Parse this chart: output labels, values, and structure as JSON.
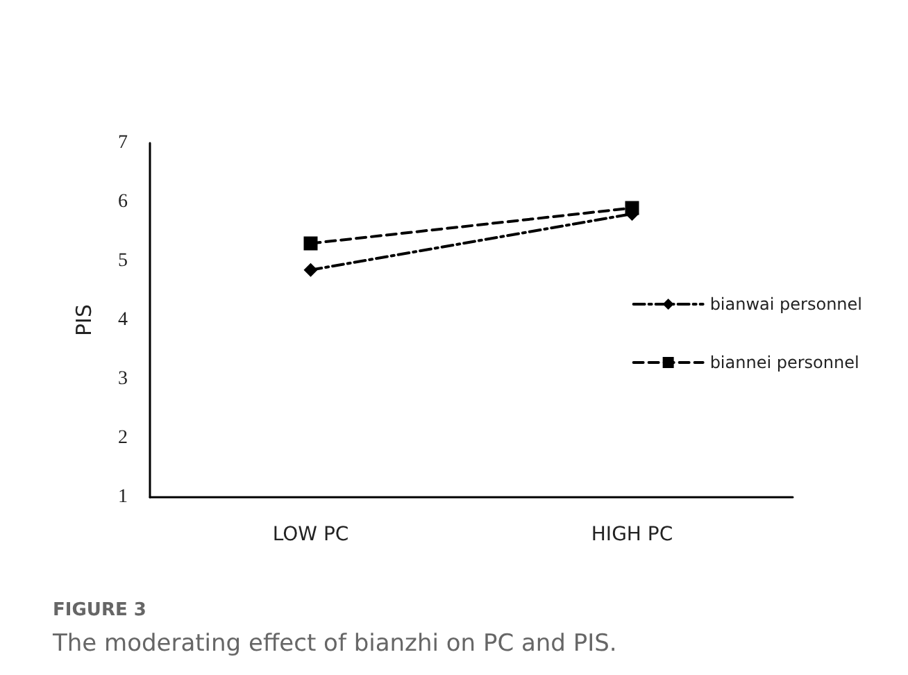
{
  "chart_data": {
    "type": "line",
    "ylabel": "PIS",
    "categories": [
      "LOW PC",
      "HIGH PC"
    ],
    "series": [
      {
        "name": "bianwai personnel",
        "color": "#000000",
        "values": [
          4.85,
          5.8
        ],
        "marker": "diamond",
        "line_style": "dotted"
      },
      {
        "name": "biannei personnel",
        "color": "#000000",
        "values": [
          5.3,
          5.9
        ],
        "marker": "square",
        "line_style": "dashed"
      }
    ],
    "ylim": [
      1,
      7
    ],
    "yticks": [
      1,
      2,
      3,
      4,
      5,
      6,
      7
    ],
    "grid": false,
    "legend": "right",
    "annotations": [
      "FIGURE 3",
      "The moderating effect of bianzhi on PC and PIS."
    ]
  }
}
